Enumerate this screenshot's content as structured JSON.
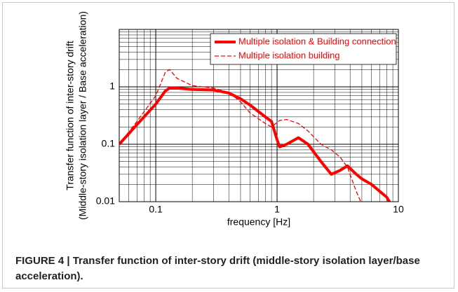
{
  "chart_data": {
    "type": "line",
    "xlabel": "frequency [Hz]",
    "ylabel": [
      "Transfer function of inter-story drift",
      "(Middle-story isolation layer  / Base acceleration)"
    ],
    "xscale": "log",
    "yscale": "log",
    "grid": true,
    "legend": "upper right",
    "xlim": [
      0.05,
      10
    ],
    "xticks": [
      0.1,
      1,
      10
    ],
    "ylim": [
      0.01,
      10
    ],
    "yticks": [
      0.01,
      0.1,
      1
    ],
    "x": [
      0.05,
      0.07,
      0.1,
      0.12,
      0.13,
      0.15,
      0.2,
      0.3,
      0.4,
      0.5,
      0.6,
      0.8,
      0.9,
      1.0,
      1.05,
      1.2,
      1.5,
      1.8,
      2.3,
      2.8,
      3.3,
      3.8,
      4.5,
      5,
      6,
      8,
      9
    ],
    "series": [
      {
        "name": "Multiple isolation & Building connection",
        "color": "#ff0000",
        "style": "solid",
        "values": [
          0.1,
          0.22,
          0.5,
          0.85,
          0.95,
          0.95,
          0.9,
          0.88,
          0.78,
          0.62,
          0.48,
          0.3,
          0.25,
          0.12,
          0.09,
          0.1,
          0.13,
          0.1,
          0.05,
          0.03,
          0.035,
          0.042,
          0.03,
          0.025,
          0.02,
          0.012,
          0.008
        ]
      },
      {
        "name": "Multiple isolation building",
        "color": "#ff0000",
        "style": "dashed",
        "values": [
          0.1,
          0.25,
          0.7,
          1.8,
          2.0,
          1.4,
          1.05,
          0.95,
          0.8,
          0.55,
          0.35,
          0.23,
          0.2,
          0.24,
          0.26,
          0.27,
          0.23,
          0.17,
          0.1,
          0.08,
          0.06,
          0.04,
          0.015,
          0.009,
          null,
          null,
          null
        ]
      }
    ],
    "caption": "FIGURE 4 | Transfer function of inter-story drift (middle-story isolation layer/base acceleration)."
  }
}
